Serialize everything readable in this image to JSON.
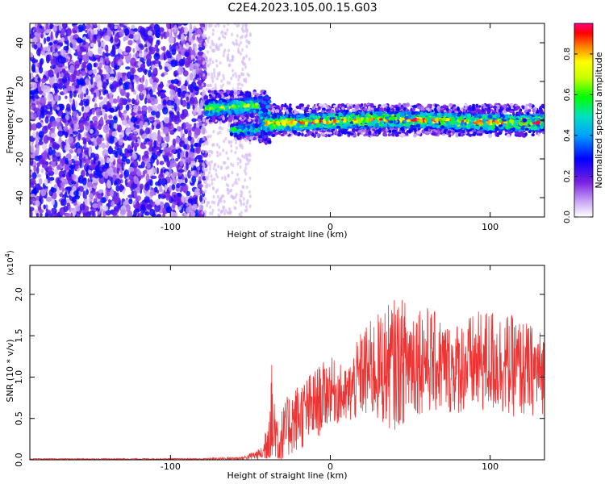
{
  "chart_data": [
    {
      "type": "heatmap",
      "title": "C2E4.2023.105.00.15.G03",
      "xlabel": "Height of straight line (km)",
      "ylabel": "Frequency (Hz)",
      "xlim": [
        -188,
        134
      ],
      "ylim": [
        -50,
        50
      ],
      "x_ticks": [
        -100,
        0,
        100
      ],
      "y_ticks": [
        -40,
        -20,
        0,
        20,
        40
      ],
      "colorbar": {
        "label": "Normalized spectral amplitude",
        "range": [
          0,
          0.95
        ],
        "ticks": [
          0.0,
          0.2,
          0.4,
          0.6,
          0.8
        ],
        "colors": [
          "#ffffff",
          "#8a2be2",
          "#0000ff",
          "#00c8ff",
          "#00ff00",
          "#ffff00",
          "#ff8000",
          "#ff0000",
          "#ff0080"
        ]
      },
      "regions": [
        {
          "x": [
            -188,
            -78
          ],
          "y": [
            -50,
            50
          ],
          "amplitude": 0.1
        },
        {
          "x": [
            -78,
            -40
          ],
          "y": [
            3,
            12
          ],
          "amplitude": 0.4
        },
        {
          "x": [
            -62,
            -40
          ],
          "y": [
            -8,
            -2
          ],
          "amplitude": 0.3
        },
        {
          "x": [
            -40,
            134
          ],
          "y": [
            -4,
            3
          ],
          "amplitude": 0.6
        }
      ]
    },
    {
      "type": "line",
      "xlabel": "Height of straight line (km)",
      "ylabel": "SNR (10 * v/v)",
      "y_multiplier": "(x10",
      "y_multiplier_exp": "4",
      "xlim": [
        -188,
        134
      ],
      "ylim": [
        0,
        2.35
      ],
      "x_ticks": [
        -100,
        0,
        100
      ],
      "y_ticks": [
        0.0,
        0.5,
        1.0,
        1.5,
        2.0
      ],
      "color": "#ee3333",
      "envelope": [
        {
          "x": -188,
          "mean": 0.01,
          "amp": 0.005
        },
        {
          "x": -80,
          "mean": 0.01,
          "amp": 0.008
        },
        {
          "x": -55,
          "mean": 0.02,
          "amp": 0.02
        },
        {
          "x": -42,
          "mean": 0.08,
          "amp": 0.08
        },
        {
          "x": -37,
          "mean": 0.45,
          "amp": 0.8
        },
        {
          "x": -32,
          "mean": 0.2,
          "amp": 0.35
        },
        {
          "x": -25,
          "mean": 0.45,
          "amp": 0.4
        },
        {
          "x": -10,
          "mean": 0.65,
          "amp": 0.45
        },
        {
          "x": 0,
          "mean": 0.85,
          "amp": 0.4
        },
        {
          "x": 10,
          "mean": 0.75,
          "amp": 0.35
        },
        {
          "x": 20,
          "mean": 1.05,
          "amp": 0.55
        },
        {
          "x": 40,
          "mean": 1.15,
          "amp": 0.8
        },
        {
          "x": 55,
          "mean": 1.25,
          "amp": 0.7
        },
        {
          "x": 75,
          "mean": 1.1,
          "amp": 0.55
        },
        {
          "x": 100,
          "mean": 1.2,
          "amp": 0.65
        },
        {
          "x": 120,
          "mean": 1.1,
          "amp": 0.6
        },
        {
          "x": 134,
          "mean": 1.05,
          "amp": 0.5
        }
      ]
    }
  ]
}
